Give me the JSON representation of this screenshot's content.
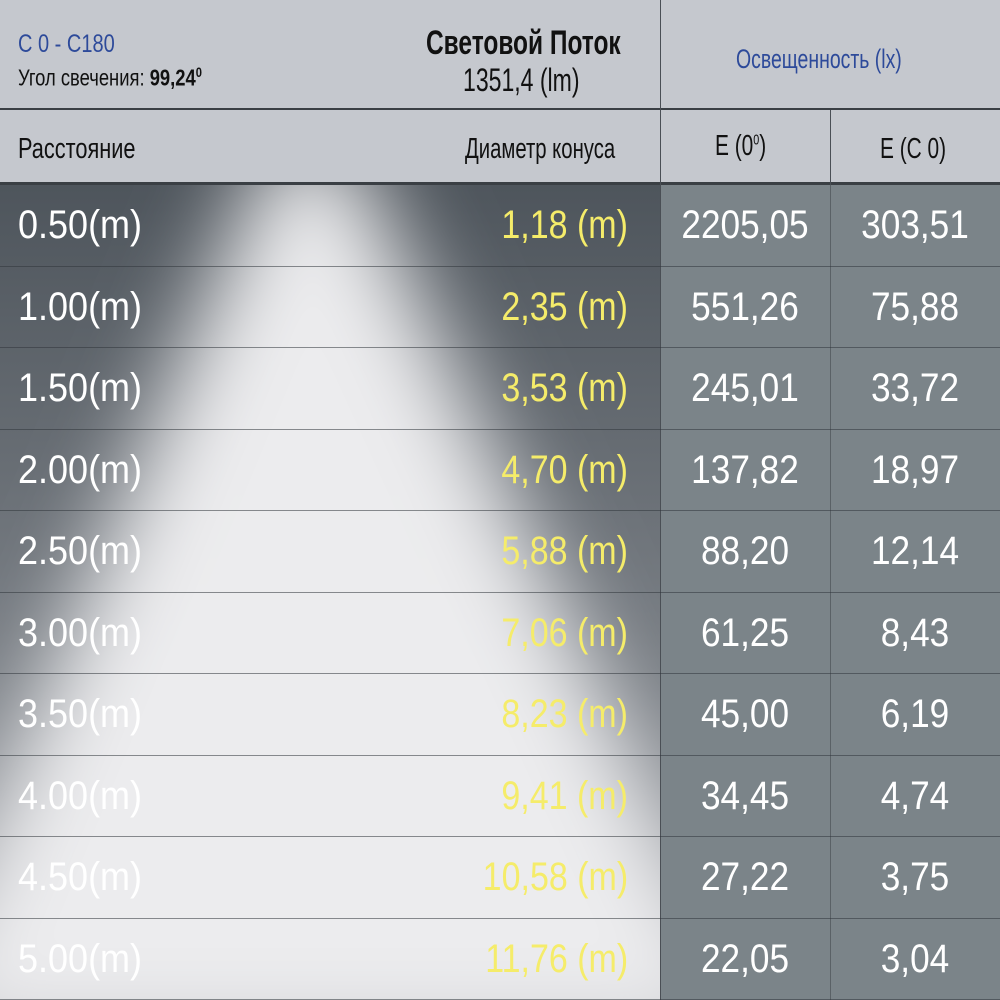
{
  "header": {
    "plane": "C 0 - C180",
    "beam_angle_label": "Угол свечения:",
    "beam_angle_value": "99,24",
    "beam_angle_unit": "0",
    "flux_title": "Световой Поток",
    "flux_value": "1351,4 (lm)",
    "illuminance_title": "Освещенность (lx)"
  },
  "columns": {
    "distance": "Расстояние",
    "diameter": "Диаметр конуса",
    "e0": "E (0",
    "e0_sup": "0",
    "e0_close": ")",
    "ec0": "E (C 0)"
  },
  "colors": {
    "header_bg": "#c5c8ce",
    "title_blue": "#2d4a9a",
    "diameter_yellow": "#f5ec6a",
    "value_white": "#ffffff",
    "right_bg": "#7b8489"
  },
  "chart_data": {
    "type": "table",
    "headers": [
      "Расстояние",
      "Диаметр конуса",
      "E (0⁰)",
      "E (C 0)"
    ],
    "rows": [
      {
        "distance": "0.50(m)",
        "diameter": "1,18 (m)",
        "e0": "2205,05",
        "ec0": "303,51"
      },
      {
        "distance": "1.00(m)",
        "diameter": "2,35 (m)",
        "e0": "551,26",
        "ec0": "75,88"
      },
      {
        "distance": "1.50(m)",
        "diameter": "3,53 (m)",
        "e0": "245,01",
        "ec0": "33,72"
      },
      {
        "distance": "2.00(m)",
        "diameter": "4,70 (m)",
        "e0": "137,82",
        "ec0": "18,97"
      },
      {
        "distance": "2.50(m)",
        "diameter": "5,88 (m)",
        "e0": "88,20",
        "ec0": "12,14"
      },
      {
        "distance": "3.00(m)",
        "diameter": "7,06 (m)",
        "e0": "61,25",
        "ec0": "8,43"
      },
      {
        "distance": "3.50(m)",
        "diameter": "8,23 (m)",
        "e0": "45,00",
        "ec0": "6,19"
      },
      {
        "distance": "4.00(m)",
        "diameter": "9,41 (m)",
        "e0": "34,45",
        "ec0": "4,74"
      },
      {
        "distance": "4.50(m)",
        "diameter": "10,58 (m)",
        "e0": "27,22",
        "ec0": "3,75"
      },
      {
        "distance": "5.00(m)",
        "diameter": "11,76 (m)",
        "e0": "22,05",
        "ec0": "3,04"
      }
    ]
  }
}
